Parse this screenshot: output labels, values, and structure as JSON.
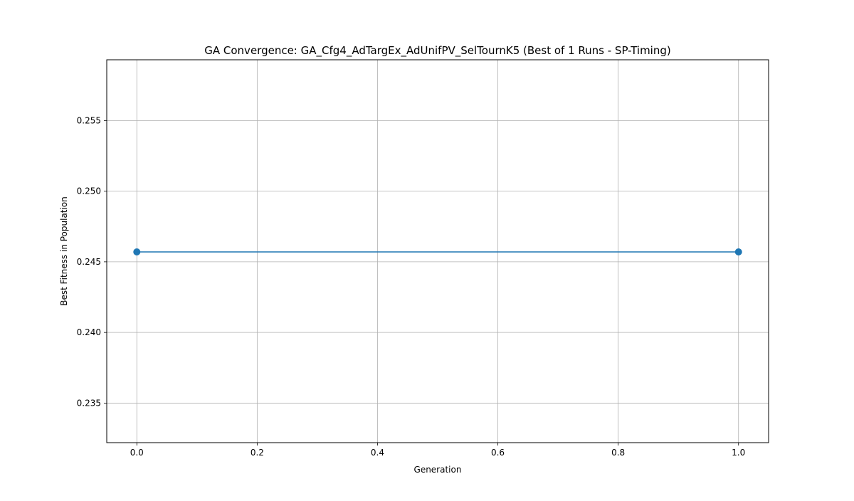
{
  "chart_data": {
    "type": "line",
    "title": "GA Convergence: GA_Cfg4_AdTargEx_AdUnifPV_SelTournK5 (Best of 1 Runs - SP-Timing)",
    "xlabel": "Generation",
    "ylabel": "Best Fitness in Population",
    "xlim": [
      -0.05,
      1.05
    ],
    "ylim": [
      0.2322,
      0.2593
    ],
    "x_ticks": [
      0.0,
      0.2,
      0.4,
      0.6,
      0.8,
      1.0
    ],
    "x_tick_labels": [
      "0.0",
      "0.2",
      "0.4",
      "0.6",
      "0.8",
      "1.0"
    ],
    "y_ticks": [
      0.235,
      0.24,
      0.245,
      0.25,
      0.255
    ],
    "y_tick_labels": [
      "0.235",
      "0.240",
      "0.245",
      "0.250",
      "0.255"
    ],
    "grid": true,
    "series": [
      {
        "color": "#1f77b4",
        "marker": "circle",
        "x": [
          0,
          1
        ],
        "y": [
          0.2457,
          0.2457
        ]
      }
    ]
  }
}
